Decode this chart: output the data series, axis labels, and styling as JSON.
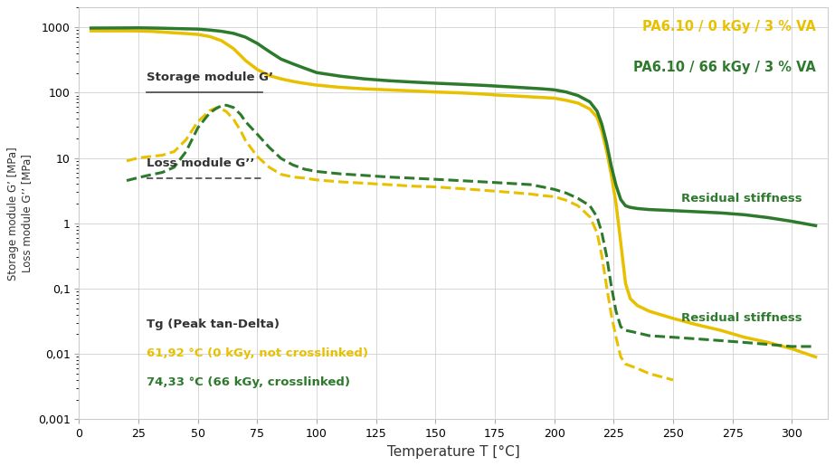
{
  "xlabel": "Temperature T [°C]",
  "ylabel": "Storage module G’ [MPa]\nLoss module G’’ [MPa]",
  "xlim": [
    0,
    315
  ],
  "color_yellow": "#E8C000",
  "color_green": "#2D7A2D",
  "legend_yellow": "PA6.10 / 0 kGy / 3 % VA",
  "legend_green": "PA6.10 / 66 kGy / 3 % VA",
  "annotation_storage": "Storage module G’",
  "annotation_loss": "Loss module G’’",
  "annotation_tg": "Tg (Peak tan-Delta)",
  "annotation_tg_yellow": "61,92 °C (0 kGy, not crosslinked)",
  "annotation_tg_green": "74,33 °C (66 kGy, crosslinked)",
  "annotation_residual_storage": "Residual stiffness",
  "annotation_residual_loss": "Residual stiffness",
  "xticks": [
    0,
    25,
    50,
    75,
    100,
    125,
    150,
    175,
    200,
    225,
    250,
    275,
    300
  ],
  "ytick_vals": [
    0.001,
    0.01,
    0.1,
    1,
    10,
    100,
    1000
  ],
  "ytick_labels": [
    "0,001",
    "0,01",
    "0,1",
    "1",
    "10",
    "100",
    "1000"
  ],
  "storage_yellow_x": [
    5,
    20,
    25,
    30,
    35,
    40,
    45,
    50,
    55,
    60,
    65,
    70,
    75,
    80,
    85,
    90,
    95,
    100,
    110,
    120,
    130,
    140,
    150,
    160,
    170,
    175,
    180,
    185,
    190,
    195,
    200,
    205,
    210,
    215,
    218,
    220,
    222,
    224,
    226,
    228,
    230,
    232,
    235,
    240,
    250,
    260,
    270,
    280,
    290,
    300,
    310
  ],
  "storage_yellow_y": [
    880,
    880,
    875,
    865,
    845,
    820,
    800,
    775,
    720,
    620,
    470,
    310,
    225,
    182,
    162,
    148,
    138,
    130,
    120,
    114,
    110,
    106,
    102,
    99,
    95,
    92,
    90,
    88,
    86,
    84,
    82,
    76,
    69,
    56,
    42,
    26,
    13,
    5.5,
    2.0,
    0.5,
    0.12,
    0.07,
    0.055,
    0.045,
    0.035,
    0.028,
    0.023,
    0.018,
    0.015,
    0.012,
    0.009
  ],
  "storage_green_x": [
    5,
    20,
    25,
    30,
    35,
    40,
    45,
    50,
    55,
    60,
    65,
    70,
    75,
    80,
    85,
    90,
    95,
    100,
    110,
    120,
    130,
    140,
    150,
    160,
    170,
    175,
    180,
    185,
    190,
    195,
    200,
    205,
    210,
    215,
    218,
    220,
    222,
    224,
    226,
    228,
    230,
    232,
    235,
    240,
    250,
    260,
    270,
    280,
    290,
    300,
    310
  ],
  "storage_green_y": [
    970,
    975,
    978,
    972,
    965,
    955,
    945,
    935,
    905,
    865,
    805,
    705,
    565,
    425,
    325,
    275,
    235,
    202,
    178,
    162,
    152,
    145,
    139,
    134,
    129,
    126,
    123,
    120,
    117,
    114,
    110,
    102,
    90,
    72,
    52,
    33,
    17,
    7.5,
    3.8,
    2.3,
    1.85,
    1.75,
    1.68,
    1.62,
    1.56,
    1.5,
    1.44,
    1.35,
    1.22,
    1.07,
    0.92
  ],
  "loss_yellow_x": [
    20,
    25,
    30,
    35,
    40,
    45,
    50,
    55,
    58,
    60,
    62,
    65,
    68,
    70,
    75,
    80,
    85,
    90,
    95,
    100,
    110,
    120,
    130,
    140,
    150,
    160,
    170,
    175,
    180,
    185,
    190,
    195,
    200,
    205,
    210,
    215,
    218,
    220,
    222,
    224,
    226,
    228,
    230,
    235,
    240,
    250
  ],
  "loss_yellow_y": [
    9.0,
    10.0,
    10.5,
    11.0,
    12.5,
    19.0,
    36.0,
    53.0,
    59.0,
    56.0,
    51.0,
    39.0,
    26.0,
    18.5,
    10.5,
    7.2,
    5.6,
    5.1,
    4.9,
    4.6,
    4.3,
    4.1,
    3.9,
    3.7,
    3.6,
    3.4,
    3.2,
    3.1,
    3.0,
    2.9,
    2.8,
    2.65,
    2.55,
    2.25,
    1.85,
    1.25,
    0.72,
    0.32,
    0.11,
    0.04,
    0.018,
    0.009,
    0.007,
    0.006,
    0.005,
    0.004
  ],
  "loss_green_x": [
    20,
    25,
    30,
    35,
    40,
    45,
    50,
    55,
    58,
    60,
    62,
    65,
    68,
    70,
    75,
    80,
    85,
    90,
    95,
    100,
    110,
    120,
    130,
    140,
    150,
    160,
    170,
    175,
    180,
    185,
    190,
    195,
    200,
    205,
    210,
    215,
    218,
    220,
    222,
    224,
    226,
    228,
    230,
    235,
    240,
    250,
    260,
    270,
    280,
    290,
    300,
    310
  ],
  "loss_green_y": [
    4.5,
    5.0,
    5.5,
    6.0,
    7.2,
    12.5,
    29.0,
    49.0,
    58.0,
    63.0,
    64.0,
    59.0,
    46.0,
    36.0,
    23.0,
    14.5,
    9.8,
    7.8,
    6.7,
    6.2,
    5.7,
    5.4,
    5.1,
    4.9,
    4.7,
    4.5,
    4.3,
    4.2,
    4.1,
    4.0,
    3.9,
    3.6,
    3.3,
    2.9,
    2.4,
    1.85,
    1.25,
    0.72,
    0.32,
    0.11,
    0.045,
    0.026,
    0.023,
    0.021,
    0.019,
    0.018,
    0.017,
    0.016,
    0.015,
    0.014,
    0.013,
    0.013
  ]
}
